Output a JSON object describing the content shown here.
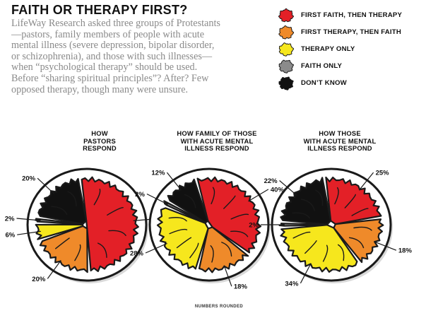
{
  "header": {
    "title": "FAITH OR THERAPY FIRST?",
    "intro": "LifeWay Research asked three groups of Protestants—pastors, family members of people with acute  mental illness (severe depression, bipolar disorder, or schizophrenia), and those with such illnesses—when “psychological therapy” should be used. Before “sharing spiritual principles”? After? Few opposed therapy, though many were unsure."
  },
  "legend": [
    {
      "label": "FIRST FAITH, THEN THERAPY",
      "color": "#e32027",
      "icon": "brain-icon"
    },
    {
      "label": "FIRST THERAPY, THEN FAITH",
      "color": "#ef8a2a",
      "icon": "brain-icon"
    },
    {
      "label": "THERAPY ONLY",
      "color": "#f6e71d",
      "icon": "brain-icon"
    },
    {
      "label": "FAITH ONLY",
      "color": "#8b8b8b",
      "icon": "brain-icon"
    },
    {
      "label": "DON’T KNOW",
      "color": "#111111",
      "icon": "brain-icon"
    }
  ],
  "footnote": "NUMBERS ROUNDED",
  "chart_data": [
    {
      "type": "pie",
      "title": "HOW\nPASTORS\nRESPOND",
      "categories": [
        "FIRST FAITH, THEN THERAPY",
        "FIRST THERAPY, THEN FAITH",
        "THERAPY ONLY",
        "FAITH ONLY",
        "DON’T KNOW"
      ],
      "values": [
        51,
        20,
        6,
        2,
        20
      ],
      "labels": [
        "51%",
        "20%",
        "6%",
        "2%",
        "20%"
      ]
    },
    {
      "type": "pie",
      "title": "HOW FAMILY OF THOSE\nWITH ACUTE MENTAL\nILLNESS RESPOND",
      "categories": [
        "FIRST FAITH, THEN THERAPY",
        "FIRST THERAPY, THEN FAITH",
        "THERAPY ONLY",
        "FAITH ONLY",
        "DON’T KNOW"
      ],
      "values": [
        40,
        18,
        28,
        2,
        12
      ],
      "labels": [
        "40%",
        "18%",
        "28%",
        "2%",
        "12%"
      ]
    },
    {
      "type": "pie",
      "title": "HOW THOSE\nWITH ACUTE MENTAL\nILLNESS RESPOND",
      "categories": [
        "FIRST FAITH, THEN THERAPY",
        "FIRST THERAPY, THEN FAITH",
        "THERAPY ONLY",
        "FAITH ONLY",
        "DON’T KNOW"
      ],
      "values": [
        25,
        18,
        34,
        2,
        22
      ],
      "labels": [
        "25%",
        "18%",
        "34%",
        "2%",
        "22%"
      ]
    }
  ]
}
